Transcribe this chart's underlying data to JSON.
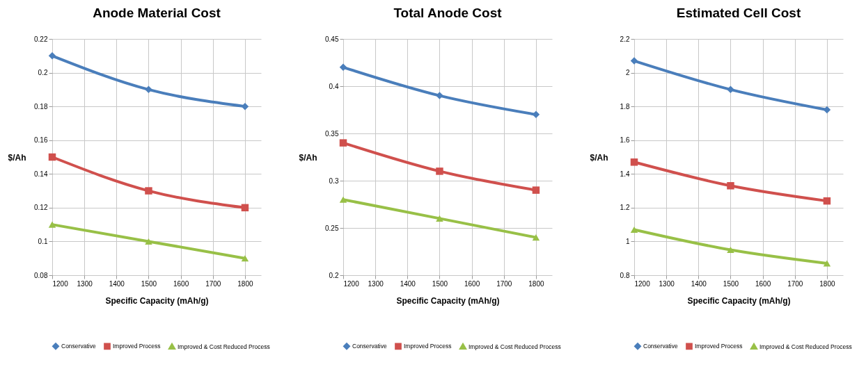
{
  "chart_data": [
    {
      "type": "line",
      "title": "Anode Material Cost",
      "xlabel": "Specific Capacity (mAh/g)",
      "ylabel": "$/Ah",
      "x": [
        1200,
        1500,
        1800
      ],
      "xlim": [
        1200,
        1850
      ],
      "xticks": [
        1200,
        1300,
        1400,
        1500,
        1600,
        1700,
        1800
      ],
      "ylim": [
        0.08,
        0.22
      ],
      "yticks": [
        0.08,
        0.1,
        0.12,
        0.14,
        0.16,
        0.18,
        0.2,
        0.22
      ],
      "grid": true,
      "legend": "bottom",
      "line_style": "solid",
      "series": [
        {
          "name": "Conservative",
          "color": "#4a7ebb",
          "marker": "diamond",
          "values": [
            0.21,
            0.19,
            0.18
          ]
        },
        {
          "name": "Improved Process",
          "color": "#d0504d",
          "marker": "square",
          "values": [
            0.15,
            0.13,
            0.12
          ]
        },
        {
          "name": "Improved & Cost Reduced Process",
          "color": "#98c047",
          "marker": "triangle",
          "values": [
            0.11,
            0.1,
            0.09
          ]
        }
      ]
    },
    {
      "type": "line",
      "title": "Total Anode Cost",
      "xlabel": "Specific Capacity (mAh/g)",
      "ylabel": "$/Ah",
      "x": [
        1200,
        1500,
        1800
      ],
      "xlim": [
        1200,
        1850
      ],
      "xticks": [
        1200,
        1300,
        1400,
        1500,
        1600,
        1700,
        1800
      ],
      "ylim": [
        0.2,
        0.45
      ],
      "yticks": [
        0.2,
        0.25,
        0.3,
        0.35,
        0.4,
        0.45
      ],
      "grid": true,
      "legend": "bottom",
      "line_style": "solid",
      "series": [
        {
          "name": "Conservative",
          "color": "#4a7ebb",
          "marker": "diamond",
          "values": [
            0.42,
            0.39,
            0.37
          ]
        },
        {
          "name": "Improved Process",
          "color": "#d0504d",
          "marker": "square",
          "values": [
            0.34,
            0.31,
            0.29
          ]
        },
        {
          "name": "Improved & Cost Reduced Process",
          "color": "#98c047",
          "marker": "triangle",
          "values": [
            0.28,
            0.26,
            0.24
          ]
        }
      ]
    },
    {
      "type": "line",
      "title": "Estimated Cell Cost",
      "xlabel": "Specific Capacity (mAh/g)",
      "ylabel": "$/Ah",
      "x": [
        1200,
        1500,
        1800
      ],
      "xlim": [
        1200,
        1850
      ],
      "xticks": [
        1200,
        1300,
        1400,
        1500,
        1600,
        1700,
        1800
      ],
      "ylim": [
        0.8,
        2.2
      ],
      "yticks": [
        0.8,
        1,
        1.2,
        1.4,
        1.6,
        1.8,
        2,
        2.2
      ],
      "grid": true,
      "legend": "bottom",
      "line_style": "solid",
      "series": [
        {
          "name": "Conservative",
          "color": "#4a7ebb",
          "marker": "diamond",
          "values": [
            2.07,
            1.9,
            1.78
          ]
        },
        {
          "name": "Improved Process",
          "color": "#d0504d",
          "marker": "square",
          "values": [
            1.47,
            1.33,
            1.24
          ]
        },
        {
          "name": "Improved & Cost Reduced Process",
          "color": "#98c047",
          "marker": "triangle",
          "values": [
            1.07,
            0.95,
            0.87
          ]
        }
      ]
    }
  ]
}
